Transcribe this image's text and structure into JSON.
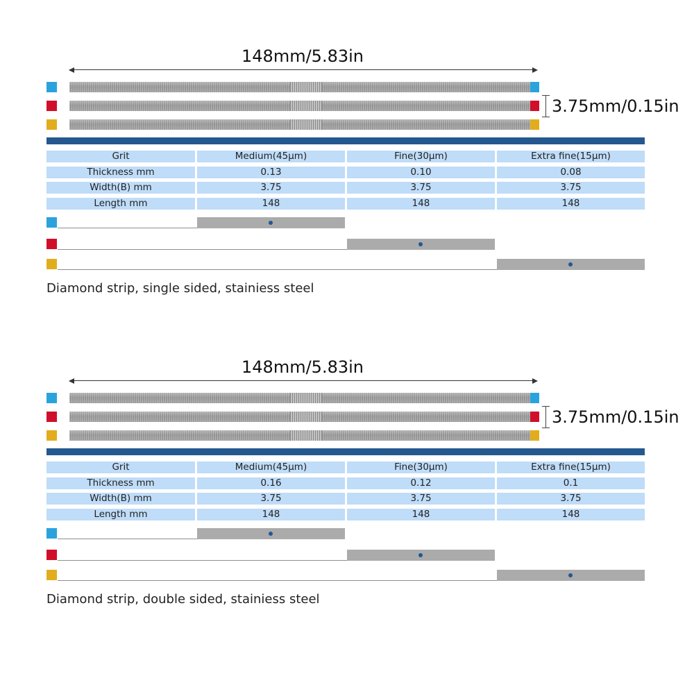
{
  "colors": {
    "blue": "#2aa3dd",
    "red": "#d0102a",
    "yellow": "#e2ad1d",
    "band": "#24588f",
    "cell": "#bfdcf8",
    "indicator": "#ababab"
  },
  "panels": [
    {
      "length_label": "148mm/5.83in",
      "width_label": "3.75mm/0.15in",
      "table": {
        "rows": [
          [
            "Grit",
            "Medium(45μm)",
            "Fine(30μm)",
            "Extra fine(15μm)"
          ],
          [
            "Thickness mm",
            "0.13",
            "0.10",
            "0.08"
          ],
          [
            "Width(B) mm",
            "3.75",
            "3.75",
            "3.75"
          ],
          [
            "Length mm",
            "148",
            "148",
            "148"
          ]
        ]
      },
      "selectors": [
        {
          "color": "blue",
          "grit_column": 1
        },
        {
          "color": "red",
          "grit_column": 2
        },
        {
          "color": "yellow",
          "grit_column": 3
        }
      ],
      "caption": "Diamond strip, single sided, stainiess steel"
    },
    {
      "length_label": "148mm/5.83in",
      "width_label": "3.75mm/0.15in",
      "table": {
        "rows": [
          [
            "Grit",
            "Medium(45μm)",
            "Fine(30μm)",
            "Extra fine(15μm)"
          ],
          [
            "Thickness mm",
            "0.16",
            "0.12",
            "0.1"
          ],
          [
            "Width(B) mm",
            "3.75",
            "3.75",
            "3.75"
          ],
          [
            "Length mm",
            "148",
            "148",
            "148"
          ]
        ]
      },
      "selectors": [
        {
          "color": "blue",
          "grit_column": 1
        },
        {
          "color": "red",
          "grit_column": 2
        },
        {
          "color": "yellow",
          "grit_column": 3
        }
      ],
      "caption": "Diamond strip, double sided, stainiess steel"
    }
  ]
}
